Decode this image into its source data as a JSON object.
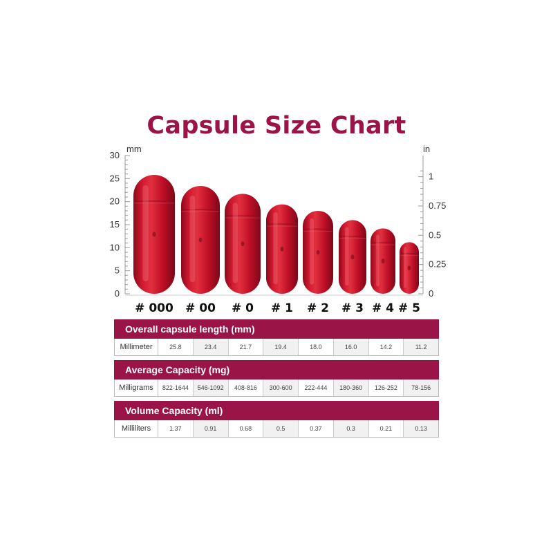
{
  "title": "Capsule Size Chart",
  "colors": {
    "brand": "#9b1447",
    "capsule": "#c8102e",
    "capsule_dark": "#8a0a1c",
    "capsule_highlight": "#ea5866"
  },
  "chart_data": {
    "type": "bar",
    "title": "Capsule Size Chart",
    "categories": [
      "# 000",
      "# 00",
      "# 0",
      "# 1",
      "# 2",
      "# 3",
      "# 4",
      "# 5"
    ],
    "values": [
      25.8,
      23.4,
      21.7,
      19.4,
      18.0,
      16.0,
      14.2,
      11.2
    ],
    "y_left": {
      "label": "mm",
      "ylim": [
        0,
        30
      ],
      "ticks": [
        "0",
        "5",
        "10",
        "15",
        "20",
        "25",
        "30"
      ]
    },
    "y_right": {
      "label": "in",
      "ylim": [
        0,
        1.181
      ],
      "ticks": [
        "0",
        "0.25",
        "0.5",
        "0.75",
        "1"
      ]
    },
    "mark": "capsule",
    "grid": false
  },
  "tables": [
    {
      "header": "Overall capsule length (mm)",
      "row_label": "Millimeter",
      "values": [
        "25.8",
        "23.4",
        "21.7",
        "19.4",
        "18.0",
        "16.0",
        "14.2",
        "11.2"
      ]
    },
    {
      "header": "Average Capacity (mg)",
      "row_label": "Milligrams",
      "values": [
        "822-1644",
        "546-1092",
        "408-816",
        "300-600",
        "222-444",
        "180-360",
        "126-252",
        "78-156"
      ]
    },
    {
      "header": "Volume Capacity (ml)",
      "row_label": "Milliliters",
      "values": [
        "1.37",
        "0.91",
        "0.68",
        "0.5",
        "0.37",
        "0.3",
        "0.21",
        "0.13"
      ]
    }
  ]
}
